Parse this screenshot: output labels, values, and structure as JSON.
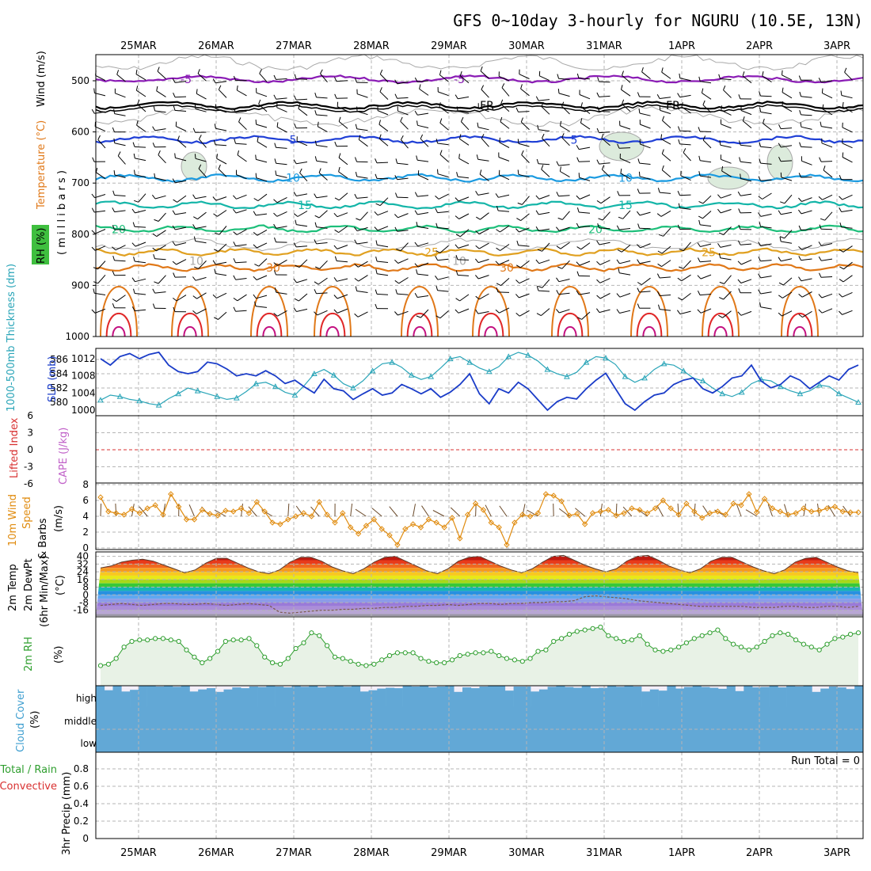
{
  "title": "GFS 0~10day 3-hourly for NGURU (10.5E, 13N)",
  "dates": [
    "25MAR",
    "26MAR",
    "27MAR",
    "28MAR",
    "29MAR",
    "30MAR",
    "31MAR",
    "1APR",
    "2APR",
    "3APR"
  ],
  "colors": {
    "temp_neg5": "#8a1bb5",
    "temp_FR": "#000000",
    "temp_5": "#1f3fd6",
    "temp_10": "#1a9ae0",
    "temp_15": "#14b5a8",
    "temp_20": "#1dbf7a",
    "temp_25": "#e0a020",
    "temp_30": "#e07818",
    "temp_35": "#e02828",
    "temp_40": "#c41080",
    "rh_contour": "#a8a8a8",
    "rh_fill": "#dcebdc",
    "thickness": "#2aa5b8",
    "slp": "#1a3cc8",
    "lifted_index": "#d83030",
    "wind_speed": "#e08c10",
    "barb": "#000000",
    "rh2m": "#2e9e2e",
    "rh2m_fill": "#e8f2e6",
    "cloud": "#62a8d6",
    "cloud_bg": "#f3eef8"
  },
  "chart_data": [
    {
      "type": "heatmap",
      "name_ref": "cross-section",
      "ylabel_parts": [
        "RH (%)",
        "Temperature (°C)",
        "Wind (m/s)"
      ],
      "ylabel_unit": "( m i l l i b a r s )",
      "y_ticks": [
        500,
        600,
        700,
        800,
        900,
        1000
      ],
      "ylim": [
        1000,
        450
      ],
      "isotherm_labels": [
        "-5",
        "-5",
        "FR",
        "FR",
        "5",
        "5",
        "10",
        "10",
        "15",
        "15",
        "20",
        "20",
        "25",
        "25",
        "30",
        "30",
        "10",
        "10"
      ],
      "isotherm_levels": [
        {
          "label": "-5",
          "p": 497
        },
        {
          "label": "FR",
          "p": 548
        },
        {
          "label": "5",
          "p": 615
        },
        {
          "label": "10",
          "p": 690
        },
        {
          "label": "15",
          "p": 743
        },
        {
          "label": "20",
          "p": 790
        },
        {
          "label": "25",
          "p": 835
        },
        {
          "label": "30",
          "p": 865
        }
      ]
    },
    {
      "type": "line",
      "name_ref": "thickness-slp",
      "ylabel_left": "1000-500mb Thickness (dm)",
      "ylabel_right": "SLP (mb)",
      "y_ticks_left": [
        580,
        582,
        584,
        586
      ],
      "y_ticks_right": [
        1000,
        1004,
        1008,
        1012
      ],
      "ylim_left": [
        579,
        587.2
      ],
      "ylim_right": [
        999,
        1014
      ],
      "series": [
        {
          "name": "Thickness (dm)",
          "values": [
            580.3,
            581.0,
            580.8,
            580.4,
            580.2,
            579.8,
            579.6,
            580.5,
            581.2,
            582.0,
            581.6,
            581.2,
            580.8,
            580.4,
            580.6,
            581.5,
            582.6,
            582.8,
            582.2,
            581.4,
            581.0,
            582.4,
            584.0,
            584.6,
            583.8,
            582.6,
            582.0,
            583.0,
            584.4,
            585.4,
            585.6,
            584.9,
            583.8,
            583.2,
            583.6,
            584.8,
            586.1,
            586.4,
            585.6,
            584.8,
            584.3,
            585.0,
            586.4,
            587.0,
            586.6,
            585.8,
            584.6,
            584.0,
            583.6,
            584.2,
            585.6,
            586.4,
            586.2,
            585.3,
            583.6,
            582.8,
            583.4,
            584.6,
            585.4,
            585.2,
            584.4,
            583.4,
            583.0,
            582.0,
            581.2,
            580.8,
            581.4,
            582.6,
            583.2,
            583.0,
            582.2,
            581.6,
            581.2,
            581.6,
            582.4,
            582.2,
            581.2,
            580.6,
            580.0
          ]
        },
        {
          "name": "SLP (mb)",
          "values": [
            1012.0,
            1010.5,
            1012.5,
            1013.2,
            1012.0,
            1013.0,
            1013.5,
            1010.5,
            1009.0,
            1008.5,
            1009.0,
            1011.2,
            1010.8,
            1009.6,
            1008.0,
            1008.5,
            1008.0,
            1009.2,
            1008.0,
            1006.2,
            1007.0,
            1005.4,
            1004.0,
            1007.2,
            1005.0,
            1004.5,
            1002.5,
            1003.8,
            1005.0,
            1003.5,
            1004.0,
            1006.0,
            1005.0,
            1003.8,
            1005.0,
            1003.0,
            1004.2,
            1006.0,
            1008.5,
            1003.8,
            1001.5,
            1005.0,
            1004.0,
            1006.5,
            1005.0,
            1002.5,
            1000.0,
            1002.0,
            1003.0,
            1002.6,
            1005.0,
            1007.0,
            1008.6,
            1005.0,
            1001.5,
            1000.0,
            1002.0,
            1003.5,
            1004.0,
            1006.0,
            1007.0,
            1007.5,
            1005.0,
            1004.0,
            1005.5,
            1007.5,
            1008.0,
            1010.5,
            1006.8,
            1005.2,
            1006.0,
            1008.0,
            1007.0,
            1005.0,
            1006.5,
            1008.0,
            1007.0,
            1009.5,
            1010.5
          ]
        }
      ]
    },
    {
      "type": "line",
      "name_ref": "lifted-index",
      "ylabel_parts": [
        "Lifted Index",
        "CAPE (J/kg)"
      ],
      "y_ticks": [
        6,
        3,
        0,
        -3,
        -6
      ],
      "ylim": [
        6,
        -6
      ],
      "series": [
        {
          "name": "Lifted Index",
          "values": [
            0
          ]
        }
      ]
    },
    {
      "type": "line",
      "name_ref": "wind10m",
      "ylabel_parts": [
        "10m Wind",
        "Speed",
        "& Barbs",
        "(m/s)"
      ],
      "y_ticks": [
        0,
        2,
        4,
        6,
        8
      ],
      "ylim": [
        0,
        8
      ],
      "series": [
        {
          "name": "Speed",
          "values": [
            6.4,
            4.6,
            4.4,
            4.2,
            4.9,
            4.4,
            5.0,
            5.4,
            4.2,
            6.8,
            5.2,
            3.6,
            3.6,
            4.8,
            4.3,
            4.1,
            4.7,
            4.6,
            5.0,
            4.4,
            5.8,
            4.6,
            3.2,
            3.0,
            3.6,
            4.0,
            4.4,
            4.0,
            5.8,
            4.2,
            3.2,
            4.4,
            2.6,
            1.8,
            2.8,
            3.6,
            2.4,
            1.6,
            0.4,
            2.4,
            3.0,
            2.6,
            3.6,
            3.2,
            2.6,
            3.8,
            1.2,
            4.2,
            5.6,
            4.8,
            3.2,
            2.6,
            0.4,
            3.2,
            4.2,
            4.0,
            4.4,
            6.8,
            6.6,
            5.9,
            4.1,
            4.3,
            3.0,
            4.4,
            4.6,
            4.8,
            4.1,
            4.4,
            5.0,
            4.8,
            4.4,
            5.0,
            6.0,
            5.0,
            4.2,
            5.6,
            4.6,
            3.8,
            4.4,
            4.6,
            4.2,
            5.6,
            5.4,
            6.8,
            4.5,
            6.2,
            5.0,
            4.6,
            4.2,
            4.4,
            5.0,
            4.6,
            4.7,
            5.0,
            5.2,
            4.6,
            4.5,
            4.5
          ]
        }
      ]
    },
    {
      "type": "area",
      "name_ref": "temp2m",
      "ylabel_parts": [
        "2m Temp",
        "2m DewPt",
        "(6hr Min/Max)",
        "(°C)"
      ],
      "y_ticks": [
        40,
        32,
        24,
        16,
        8,
        0,
        -8,
        -16
      ],
      "ylim": [
        -22,
        43
      ],
      "series": [
        {
          "name": "2m Temp",
          "values": [
            28,
            30,
            34,
            36,
            37,
            35,
            31,
            27,
            23,
            26,
            33,
            38,
            38,
            33,
            28,
            24,
            22,
            26,
            34,
            39,
            39,
            35,
            29,
            25,
            22,
            27,
            34,
            39,
            40,
            35,
            30,
            25,
            22,
            27,
            35,
            39,
            40,
            35,
            30,
            26,
            23,
            27,
            34,
            40,
            41,
            36,
            31,
            27,
            24,
            27,
            35,
            40,
            41,
            36,
            30,
            26,
            23,
            27,
            35,
            39,
            39,
            34,
            29,
            25,
            22,
            26,
            34,
            38,
            39,
            34,
            29,
            25,
            23
          ]
        },
        {
          "name": "2m DewPt",
          "values": [
            -11,
            -10,
            -9,
            -10,
            -11,
            -10,
            -9,
            -9,
            -10,
            -10,
            -9,
            -10,
            -11,
            -10,
            -9,
            -10,
            -11,
            -18,
            -19,
            -18,
            -17,
            -16,
            -16,
            -15,
            -15,
            -14,
            -14,
            -13,
            -13,
            -12,
            -12,
            -11,
            -11,
            -10,
            -11,
            -10,
            -9,
            -9,
            -10,
            -9,
            -9,
            -8,
            -8,
            -7,
            -7,
            -6,
            -2,
            -1,
            -2,
            -3,
            -4,
            -6,
            -7,
            -8,
            -9,
            -10,
            -11,
            -12,
            -12,
            -12,
            -12,
            -12,
            -13,
            -13,
            -13,
            -12,
            -12,
            -13,
            -13,
            -12,
            -12,
            -13,
            -12
          ]
        }
      ]
    },
    {
      "type": "area",
      "name_ref": "rh2m",
      "ylabel_parts": [
        "2m RH",
        "(%)"
      ],
      "series": [
        {
          "name": "2m RH",
          "values": [
            13,
            14,
            18,
            26,
            30,
            31,
            31,
            32,
            32,
            31,
            30,
            24,
            19,
            15,
            18,
            23,
            30,
            31,
            31,
            32,
            27,
            19,
            15,
            14,
            18,
            25,
            29,
            36,
            34,
            27,
            19,
            18,
            16,
            14,
            13,
            14,
            17,
            20,
            22,
            22,
            22,
            18,
            16,
            15,
            15,
            17,
            20,
            21,
            22,
            22,
            23,
            20,
            18,
            17,
            16,
            18,
            23,
            24,
            30,
            32,
            35,
            37,
            38,
            39,
            40,
            34,
            32,
            30,
            31,
            34,
            28,
            24,
            23,
            24,
            26,
            29,
            32,
            34,
            36,
            38,
            32,
            28,
            26,
            24,
            26,
            30,
            34,
            36,
            35,
            31,
            28,
            26,
            24,
            28,
            32,
            33,
            35,
            36
          ]
        }
      ]
    },
    {
      "type": "bar",
      "name_ref": "cloud-cover",
      "ylabel_parts": [
        "Cloud Cover",
        "(%)"
      ],
      "y_ticks": [
        "high",
        "middle",
        "low"
      ],
      "series": [
        {
          "name": "high",
          "values": [
            1,
            0.78,
            1,
            0.72,
            0.8,
            1,
            1,
            0.96,
            1,
            0.95,
            1,
            0.72,
            0.82,
            0.88,
            0.7,
            0.82,
            0.92,
            0.88,
            0.96,
            0.94,
            1,
            0.96,
            0.92,
            1,
            0.95,
            1,
            0.92,
            0.96,
            1,
            0.95,
            1,
            0.72,
            0.78,
            0.86,
            0.9,
            0.88,
            1,
            0.96,
            1,
            0.92,
            0.96,
            1,
            0.7,
            0.92,
            0.88,
            0.96,
            1,
            1,
            0.76,
            0.96,
            0.96,
            0.72,
            0.82,
            0.95,
            1,
            0.94,
            0.9,
            1,
            0.88,
            0.9,
            1,
            0.95,
            1,
            0.96,
            0.72,
            0.82,
            0.76,
            1,
            0.86,
            0.94,
            1,
            0.94,
            0.9,
            0.85,
            1,
            0.74,
            1,
            0.92,
            0.94,
            1,
            0.92,
            1,
            0.96,
            1,
            0.7,
            0.86,
            0.96,
            0.92,
            0.84,
            1
          ]
        }
      ]
    },
    {
      "type": "bar",
      "name_ref": "precip",
      "ylabel_parts": [
        "Total / Rain",
        "Convective",
        "3hr Precip (mm)"
      ],
      "annotation": "Run Total = 0",
      "y_ticks": [
        "0",
        "0.2",
        "0.4",
        "0.6",
        "0.8"
      ],
      "ylim": [
        0,
        0.95
      ],
      "series": [
        {
          "name": "Total / Rain",
          "values": [
            0
          ]
        }
      ]
    }
  ]
}
